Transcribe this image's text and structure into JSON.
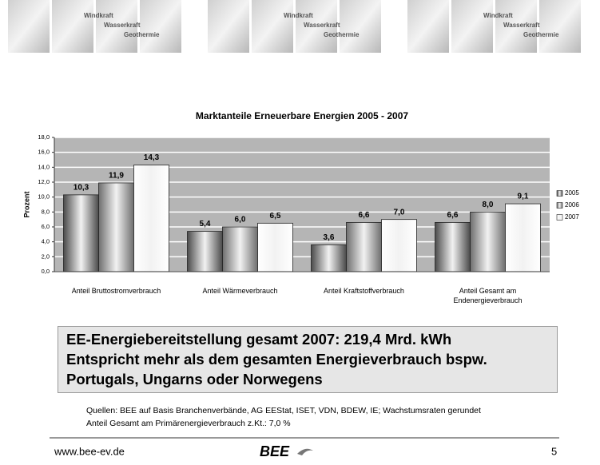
{
  "banner": [
    "Windkraft",
    "Wasserkraft",
    "Geothermie"
  ],
  "chart_data": {
    "type": "bar",
    "title": "Marktanteile Erneuerbare Energien 2005 - 2007",
    "y_label": "Prozent",
    "categories": [
      "Anteil Bruttostromverbrauch",
      "Anteil Wärmeverbrauch",
      "Anteil Kraftstoffverbrauch",
      "Anteil Gesamt am Endenergieverbrauch"
    ],
    "series": [
      {
        "name": "2005",
        "color": "#4a4a4a",
        "values": [
          10.3,
          5.4,
          3.6,
          6.6
        ],
        "value_labels": [
          "10,3",
          "5,4",
          "3,6",
          "6,6"
        ]
      },
      {
        "name": "2006",
        "color": "#6e6e6e",
        "values": [
          11.9,
          6.0,
          6.6,
          8.0
        ],
        "value_labels": [
          "11,9",
          "6,0",
          "6,6",
          "8,0"
        ]
      },
      {
        "name": "2007",
        "color": "#ffffff",
        "values": [
          14.3,
          6.5,
          7.0,
          9.1
        ],
        "value_labels": [
          "14,3",
          "6,5",
          "7,0",
          "9,1"
        ]
      }
    ],
    "ylim": [
      0,
      18
    ],
    "yticks": [
      {
        "value": 0,
        "label": "0,0"
      },
      {
        "value": 2,
        "label": "2,0"
      },
      {
        "value": 4,
        "label": "4,0"
      },
      {
        "value": 6,
        "label": "6,0"
      },
      {
        "value": 8,
        "label": "8,0"
      },
      {
        "value": 10,
        "label": "10,0"
      },
      {
        "value": 12,
        "label": "12,0"
      },
      {
        "value": 14,
        "label": "14,0"
      },
      {
        "value": 16,
        "label": "16,0"
      },
      {
        "value": 18,
        "label": "18,0"
      }
    ],
    "grid": true,
    "legend": "right"
  },
  "headline": [
    "EE-Energiebereitstellung gesamt 2007: 219,4 Mrd. kWh",
    "Entspricht mehr als dem gesamten Energieverbrauch bspw.",
    "Portugals, Ungarns oder Norwegens"
  ],
  "sources": [
    "Quellen: BEE auf Basis Branchenverbände, AG EEStat, ISET, VDN, BDEW, IE; Wachstumsraten gerundet",
    "Anteil Gesamt am Primärenergieverbrauch z.Kt.: 7,0 %"
  ],
  "footer": {
    "url": "www.bee-ev.de",
    "logo": "BEE",
    "page": "5"
  }
}
